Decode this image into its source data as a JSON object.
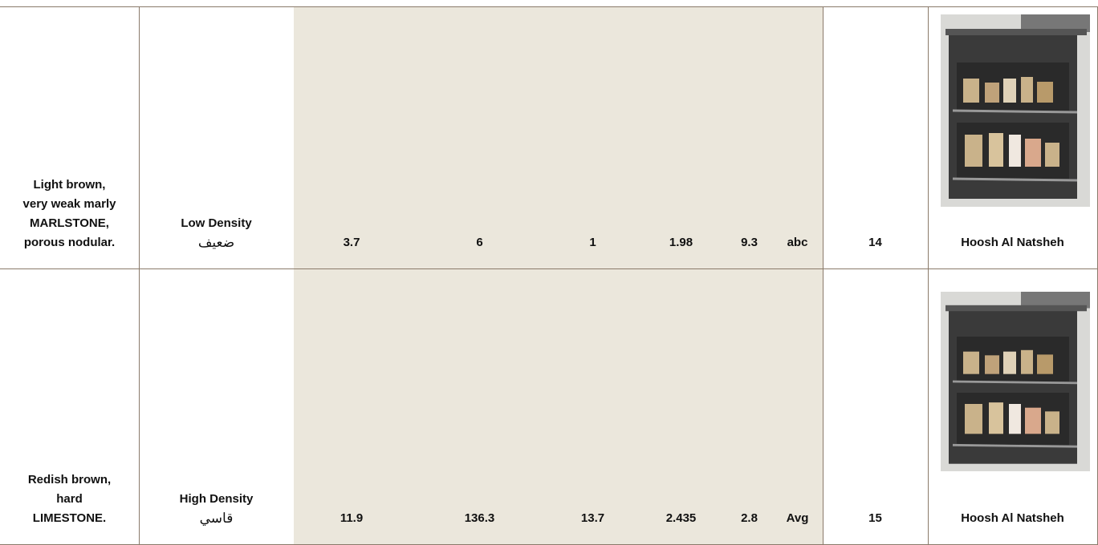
{
  "table": {
    "rows": [
      {
        "description": "Light brown, very weak marly MARLSTONE, porous nodular.",
        "density": "Low Density",
        "density_ar": "ضعيف",
        "cells": [
          "3.7",
          "6",
          "1",
          "1.98",
          "9.3",
          "abc",
          "14"
        ],
        "location": "Hoosh Al Natsheh"
      },
      {
        "description": "Redish brown, hard LIMESTONE.",
        "density": "High Density",
        "density_ar": "قاسي",
        "cells": [
          "11.9",
          "136.3",
          "13.7",
          "2.435",
          "2.8",
          "Avg",
          "15"
        ],
        "location": "Hoosh Al Natsheh"
      }
    ]
  }
}
